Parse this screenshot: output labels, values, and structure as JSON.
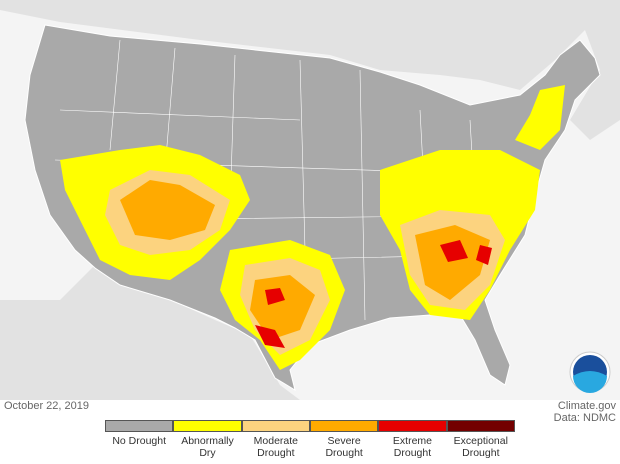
{
  "date": "October 22, 2019",
  "credit": {
    "source": "Climate.gov",
    "data": "Data: NDMC"
  },
  "legend": {
    "items": [
      {
        "label": "No Drought",
        "color": "#a9a9a9"
      },
      {
        "label": "Abnormally Dry",
        "color": "#ffff00"
      },
      {
        "label": "Moderate Drought",
        "color": "#fcd37f"
      },
      {
        "label": "Severe Drought",
        "color": "#ffaa00"
      },
      {
        "label": "Extreme Drought",
        "color": "#e60000"
      },
      {
        "label": "Exceptional Drought",
        "color": "#730000"
      }
    ]
  }
}
